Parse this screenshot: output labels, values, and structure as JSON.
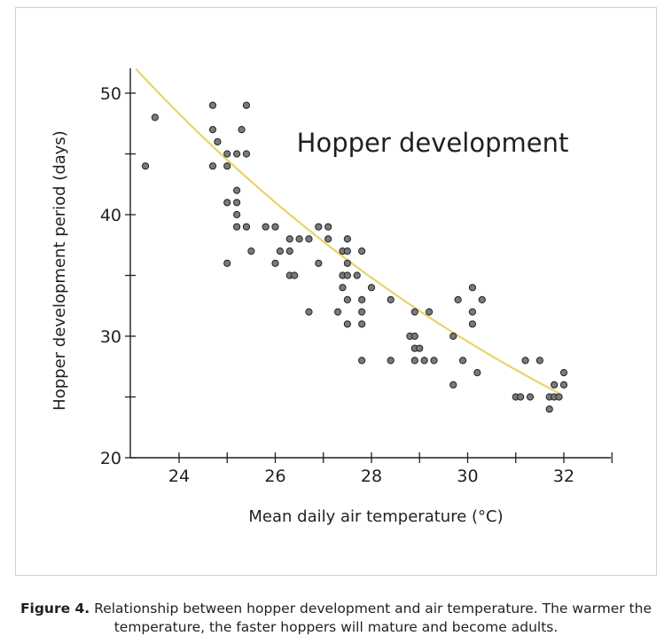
{
  "chart_data": {
    "type": "scatter",
    "title": "Hopper development",
    "xlabel": "Mean daily air temperature (°C)",
    "ylabel": "Hopper development period (days)",
    "xlim": [
      23.1,
      33.0
    ],
    "ylim": [
      20,
      52
    ],
    "xticks_major": [
      24,
      26,
      28,
      30,
      32
    ],
    "xticks_minor": [
      25,
      27,
      29,
      31,
      33
    ],
    "yticks_major": [
      20,
      30,
      40,
      50
    ],
    "yticks_minor": [
      25,
      35,
      45
    ],
    "legend": "none",
    "grid": false,
    "colors": {
      "points": "#7a7a7a",
      "point_edge": "#222222",
      "trend": "#e8d46a",
      "axis": "#231f20"
    },
    "series": [
      {
        "points": [
          [
            23.3,
            44
          ],
          [
            23.5,
            48
          ],
          [
            24.7,
            49
          ],
          [
            24.7,
            47
          ],
          [
            24.8,
            46
          ],
          [
            25.0,
            45
          ],
          [
            25.2,
            45
          ],
          [
            25.3,
            47
          ],
          [
            25.4,
            49
          ],
          [
            25.4,
            45
          ],
          [
            24.7,
            44
          ],
          [
            25.0,
            44
          ],
          [
            25.2,
            42
          ],
          [
            25.0,
            41
          ],
          [
            25.2,
            41
          ],
          [
            25.2,
            40
          ],
          [
            25.2,
            39
          ],
          [
            25.4,
            39
          ],
          [
            25.0,
            36
          ],
          [
            25.5,
            37
          ],
          [
            25.8,
            39
          ],
          [
            26.0,
            39
          ],
          [
            26.1,
            37
          ],
          [
            26.0,
            36
          ],
          [
            26.3,
            38
          ],
          [
            26.3,
            37
          ],
          [
            26.3,
            35
          ],
          [
            26.4,
            35
          ],
          [
            26.5,
            38
          ],
          [
            26.7,
            38
          ],
          [
            26.7,
            32
          ],
          [
            26.9,
            39
          ],
          [
            26.9,
            36
          ],
          [
            27.1,
            39
          ],
          [
            27.1,
            38
          ],
          [
            27.3,
            32
          ],
          [
            27.4,
            37
          ],
          [
            27.4,
            34
          ],
          [
            27.4,
            35
          ],
          [
            27.5,
            38
          ],
          [
            27.5,
            37
          ],
          [
            27.5,
            36
          ],
          [
            27.5,
            35
          ],
          [
            27.5,
            33
          ],
          [
            27.5,
            31
          ],
          [
            27.7,
            35
          ],
          [
            27.8,
            37
          ],
          [
            27.8,
            33
          ],
          [
            27.8,
            32
          ],
          [
            27.8,
            31
          ],
          [
            27.8,
            28
          ],
          [
            28.0,
            34
          ],
          [
            28.4,
            33
          ],
          [
            28.4,
            28
          ],
          [
            28.8,
            30
          ],
          [
            28.9,
            32
          ],
          [
            28.9,
            30
          ],
          [
            28.9,
            29
          ],
          [
            29.0,
            29
          ],
          [
            28.9,
            28
          ],
          [
            29.1,
            28
          ],
          [
            29.2,
            32
          ],
          [
            29.3,
            28
          ],
          [
            29.7,
            30
          ],
          [
            29.7,
            26
          ],
          [
            29.8,
            33
          ],
          [
            29.9,
            28
          ],
          [
            30.1,
            34
          ],
          [
            30.1,
            32
          ],
          [
            30.1,
            31
          ],
          [
            30.2,
            27
          ],
          [
            30.3,
            33
          ],
          [
            31.0,
            25
          ],
          [
            31.1,
            25
          ],
          [
            31.2,
            28
          ],
          [
            31.3,
            25
          ],
          [
            31.5,
            28
          ],
          [
            31.7,
            25
          ],
          [
            31.7,
            24
          ],
          [
            31.8,
            26
          ],
          [
            31.8,
            25
          ],
          [
            31.9,
            25
          ],
          [
            32.0,
            27
          ],
          [
            32.0,
            26
          ]
        ]
      }
    ],
    "trendline": {
      "type": "exponential",
      "x_range": [
        23.1,
        31.9
      ],
      "start_y": 52,
      "end_y": 25.3
    }
  },
  "caption": {
    "label": "Figure 4.",
    "text": "Relationship between hopper development and air temperature. The warmer the temperature, the faster hoppers will mature and become adults."
  }
}
